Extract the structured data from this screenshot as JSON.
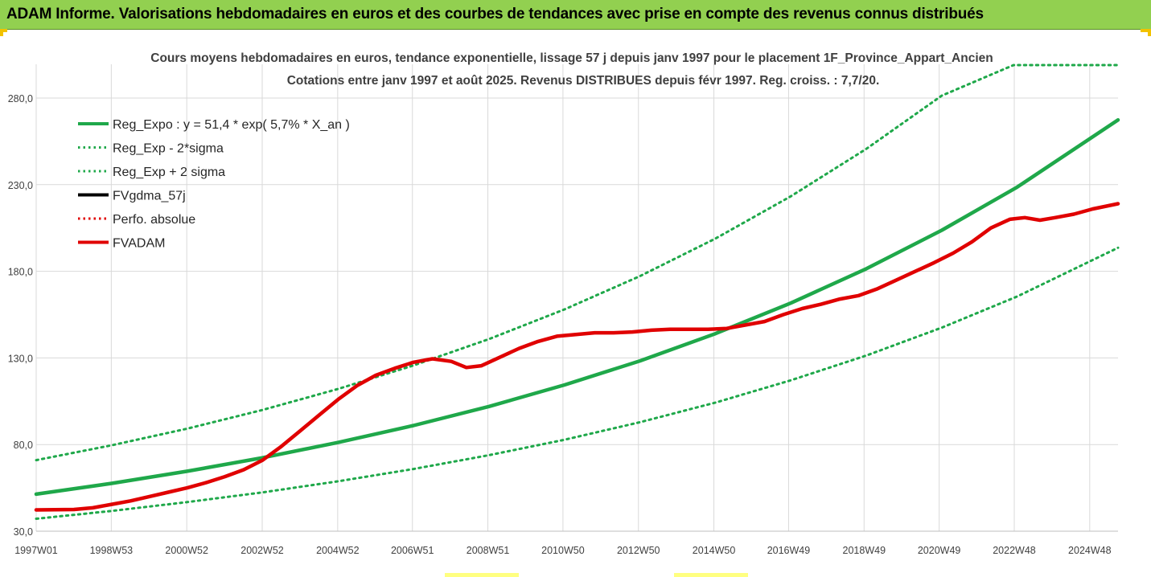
{
  "banner": {
    "title": "ADAM Informe. Valorisations hebdomadaires en euros et des courbes de tendances avec prise en compte des revenus connus distribués"
  },
  "colors": {
    "banner_bg": "#92d050",
    "regression": "#1fa84a",
    "sigma_bands": "#1fa84a",
    "fvgdma": "#000000",
    "perfo": "#e00000",
    "fvadam": "#e00000",
    "grid": "#d9d9d9"
  },
  "chart_data": {
    "type": "line",
    "title": "Cours moyens hebdomadaires en euros, tendance exponentielle, lissage 57 j depuis janv 1997 pour le placement 1F_Province_Appart_Ancien",
    "subtitle": "Cotations entre janv 1997 et août 2025. Revenus DISTRIBUES depuis févr 1997. Reg. croiss. : 7,7/20.",
    "xlabel": "",
    "ylabel": "",
    "xlim": [
      1997.0,
      2025.67
    ],
    "ylim": [
      30,
      300
    ],
    "y_ticks": [
      30,
      80,
      130,
      180,
      230,
      280
    ],
    "y_tick_labels": [
      "30,0",
      "80,0",
      "130,0",
      "180,0",
      "230,0",
      "280,0"
    ],
    "x_ticks": [
      1997.0,
      1998.99,
      2000.99,
      2002.99,
      2004.99,
      2006.97,
      2008.97,
      2010.96,
      2012.96,
      2014.96,
      2016.94,
      2018.94,
      2020.93,
      2022.92,
      2024.92
    ],
    "x_tick_labels": [
      "1997W01",
      "1998W53",
      "2000W52",
      "2002W52",
      "2004W52",
      "2006W51",
      "2008W51",
      "2010W50",
      "2012W50",
      "2014W50",
      "2016W49",
      "2018W49",
      "2020W49",
      "2022W48",
      "2024W48"
    ],
    "grid": true,
    "legend_position": "top-left",
    "legend": [
      {
        "name": "Reg_Expo : y = 51,4 * exp( 5,7% *  X_an )",
        "style": "solid",
        "color": "#1fa84a"
      },
      {
        "name": "Reg_Exp - 2*sigma",
        "style": "dotted",
        "color": "#1fa84a"
      },
      {
        "name": "Reg_Exp + 2 sigma",
        "style": "dotted",
        "color": "#1fa84a"
      },
      {
        "name": "FVgdma_57j",
        "style": "solid",
        "color": "#000000"
      },
      {
        "name": "Perfo. absolue",
        "style": "dotted",
        "color": "#e00000"
      },
      {
        "name": "FVADAM",
        "style": "solid",
        "color": "#e00000"
      }
    ],
    "series": [
      {
        "name": "Reg_Expo : y = 51,4 * exp( 5,7% *  X_an )",
        "x": [
          1997.0,
          1999.0,
          2001.0,
          2003.0,
          2005.0,
          2007.0,
          2009.0,
          2011.0,
          2013.0,
          2015.0,
          2017.0,
          2019.0,
          2021.0,
          2023.0,
          2025.67
        ],
        "y": [
          51.4,
          57.6,
          64.6,
          72.4,
          81.2,
          91.0,
          102.0,
          114.4,
          128.3,
          144.0,
          161.7,
          181.5,
          203.7,
          228.6,
          267.4
        ]
      },
      {
        "name": "Reg_Exp - 2*sigma",
        "x": [
          1997.0,
          1999.0,
          2001.0,
          2003.0,
          2005.0,
          2007.0,
          2009.0,
          2011.0,
          2013.0,
          2015.0,
          2017.0,
          2019.0,
          2021.0,
          2023.0,
          2025.67
        ],
        "y": [
          37.2,
          41.7,
          46.8,
          52.4,
          58.8,
          65.9,
          73.9,
          82.8,
          92.9,
          104.2,
          117.1,
          131.4,
          147.5,
          165.5,
          193.6
        ]
      },
      {
        "name": "Reg_Exp + 2 sigma",
        "x": [
          1997.0,
          1999.0,
          2001.0,
          2003.0,
          2005.0,
          2007.0,
          2009.0,
          2011.0,
          2013.0,
          2015.0,
          2017.0,
          2019.0,
          2021.0,
          2022.9,
          2025.67
        ],
        "y": [
          71.0,
          79.6,
          89.2,
          100.0,
          112.1,
          125.7,
          140.9,
          158.0,
          177.2,
          198.9,
          223.3,
          250.7,
          281.4,
          299.0,
          299.0
        ]
      },
      {
        "name": "FVADAM",
        "x": [
          1997.0,
          1997.5,
          1998.0,
          1998.5,
          1999.0,
          1999.5,
          2000.0,
          2000.5,
          2001.0,
          2001.5,
          2002.0,
          2002.5,
          2003.0,
          2003.5,
          2004.0,
          2004.5,
          2005.0,
          2005.5,
          2006.0,
          2006.5,
          2007.0,
          2007.5,
          2008.0,
          2008.4,
          2008.8,
          2009.3,
          2009.8,
          2010.3,
          2010.8,
          2011.3,
          2011.8,
          2012.3,
          2012.8,
          2013.3,
          2013.8,
          2014.3,
          2014.8,
          2015.3,
          2015.8,
          2016.3,
          2016.8,
          2017.3,
          2017.8,
          2018.3,
          2018.8,
          2019.3,
          2019.8,
          2020.3,
          2020.8,
          2021.3,
          2021.8,
          2022.3,
          2022.8,
          2023.2,
          2023.6,
          2024.0,
          2024.5,
          2025.0,
          2025.67
        ],
        "y": [
          42.3,
          42.4,
          42.5,
          43.5,
          45.5,
          47.5,
          50.0,
          52.5,
          55.0,
          58.0,
          61.5,
          65.5,
          71.0,
          79.0,
          88.0,
          97.0,
          106.0,
          114.0,
          120.0,
          124.0,
          127.5,
          129.5,
          128.0,
          124.5,
          125.5,
          130.5,
          135.5,
          139.5,
          142.5,
          143.5,
          144.5,
          144.5,
          145.0,
          146.0,
          146.5,
          146.5,
          146.5,
          147.0,
          149.0,
          151.0,
          155.0,
          158.5,
          161.0,
          164.0,
          166.0,
          170.0,
          175.0,
          180.0,
          185.0,
          190.5,
          197.0,
          205.0,
          210.0,
          211.0,
          209.5,
          211.0,
          213.0,
          216.0,
          219.0
        ]
      }
    ]
  }
}
